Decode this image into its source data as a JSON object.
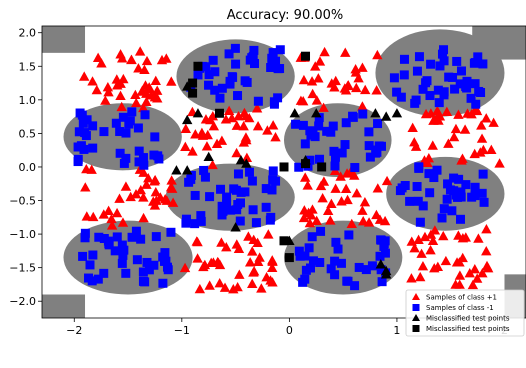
{
  "chart_data": {
    "type": "scatter",
    "title": "Accuracy: 90.00%",
    "xlabel": "",
    "ylabel": "",
    "xlim": [
      -2.3,
      2.2
    ],
    "ylim": [
      -2.25,
      2.1
    ],
    "xticks": [
      -2,
      -1,
      0,
      1,
      2
    ],
    "yticks": [
      -2.0,
      -1.5,
      -1.0,
      -0.5,
      0.0,
      0.5,
      1.0,
      1.5,
      2.0
    ],
    "xtick_labels": [
      "−2",
      "−1",
      "0",
      "1",
      "2"
    ],
    "ytick_labels": [
      "−2.0",
      "−1.5",
      "−1.0",
      "−0.5",
      "0.0",
      "0.5",
      "1.0",
      "1.5",
      "2.0"
    ],
    "grid": false,
    "legend_position": "lower-right",
    "background_regions": "gray decision region (class +1) and white region (class -1)",
    "colors": {
      "class_pos": "#ff0000",
      "class_neg": "#0000ff",
      "misclassified": "#000000",
      "region": "#808080"
    },
    "series": [
      {
        "name": "Samples of class +1",
        "marker": "triangle",
        "color": "#ff0000",
        "clusters": [
          {
            "cx": -1.5,
            "cy": 1.3,
            "n": 40
          },
          {
            "cx": -0.55,
            "cy": 0.45,
            "n": 35
          },
          {
            "cx": 0.45,
            "cy": 1.3,
            "n": 30
          },
          {
            "cx": 1.55,
            "cy": 0.45,
            "n": 35
          },
          {
            "cx": -1.5,
            "cy": -0.45,
            "n": 35
          },
          {
            "cx": 0.55,
            "cy": -0.45,
            "n": 35
          },
          {
            "cx": -0.55,
            "cy": -1.4,
            "n": 40
          },
          {
            "cx": 1.5,
            "cy": -1.35,
            "n": 35
          }
        ]
      },
      {
        "name": "Samples of class -1",
        "marker": "square",
        "color": "#0000ff",
        "clusters": [
          {
            "cx": -0.5,
            "cy": 1.35,
            "n": 40
          },
          {
            "cx": 1.4,
            "cy": 1.35,
            "n": 40
          },
          {
            "cx": -1.55,
            "cy": 0.45,
            "n": 35
          },
          {
            "cx": 0.45,
            "cy": 0.4,
            "n": 35
          },
          {
            "cx": -0.55,
            "cy": -0.45,
            "n": 40
          },
          {
            "cx": 1.45,
            "cy": -0.4,
            "n": 35
          },
          {
            "cx": -1.5,
            "cy": -1.35,
            "n": 40
          },
          {
            "cx": 0.5,
            "cy": -1.35,
            "n": 35
          }
        ]
      },
      {
        "name": "Misclassified test points",
        "marker": "triangle",
        "color": "#000000",
        "points": [
          [
            -0.95,
            1.2
          ],
          [
            -0.85,
            0.8
          ],
          [
            -0.95,
            0.7
          ],
          [
            -0.4,
            0.05
          ],
          [
            -0.75,
            0.15
          ],
          [
            -0.45,
            0.1
          ],
          [
            0.05,
            0.8
          ],
          [
            0.25,
            0.8
          ],
          [
            0.8,
            0.8
          ],
          [
            0.9,
            0.75
          ],
          [
            1.0,
            0.8
          ],
          [
            -0.95,
            -0.05
          ],
          [
            -1.05,
            -0.05
          ],
          [
            0.15,
            0.1
          ],
          [
            -0.5,
            -0.9
          ],
          [
            0.0,
            -1.1
          ],
          [
            0.85,
            -1.45
          ],
          [
            0.9,
            -1.6
          ],
          [
            0.9,
            -1.55
          ]
        ]
      },
      {
        "name": "Misclassified test points",
        "marker": "square",
        "color": "#000000",
        "points": [
          [
            -0.85,
            1.5
          ],
          [
            -0.9,
            1.25
          ],
          [
            -0.9,
            1.1
          ],
          [
            -0.65,
            0.8
          ],
          [
            0.15,
            1.65
          ],
          [
            -0.05,
            0.0
          ],
          [
            0.15,
            0.05
          ],
          [
            0.3,
            0.0
          ],
          [
            -0.05,
            -1.1
          ],
          [
            0.0,
            -1.35
          ]
        ]
      }
    ]
  },
  "legend": {
    "items": [
      {
        "label": "Samples of class +1"
      },
      {
        "label": "Samples of class -1"
      },
      {
        "label": "Misclassified test points"
      },
      {
        "label": "Misclassified test points"
      }
    ]
  }
}
